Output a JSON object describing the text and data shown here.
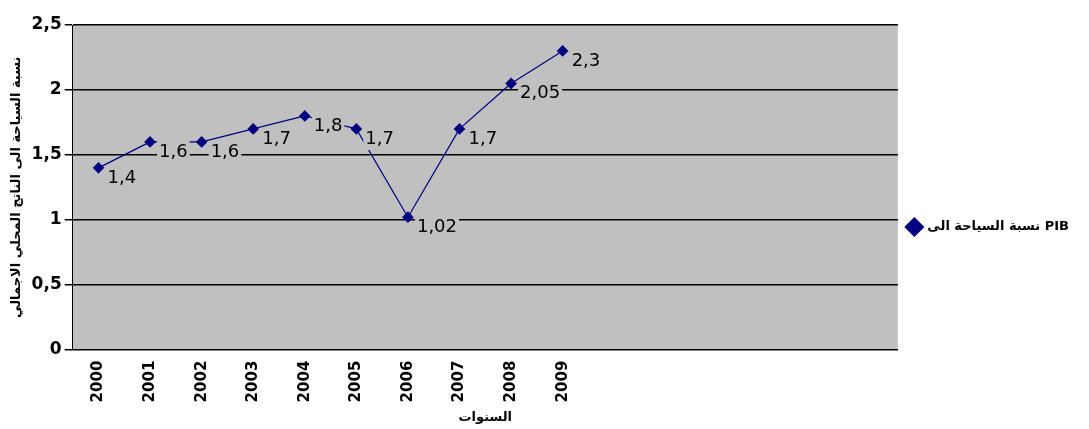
{
  "chart_data": {
    "type": "line",
    "xlabel": "السنوات",
    "ylabel": "نسبة السياحة الى الناتج المحلي الاجمالي",
    "categories": [
      "2000",
      "2001",
      "2002",
      "2003",
      "2004",
      "2005",
      "2006",
      "2007",
      "2008",
      "2009",
      null,
      null,
      null,
      null,
      null,
      null
    ],
    "series": [
      {
        "name": "نسبة السياحة الى PIB",
        "color": "#000080",
        "values": [
          1.4,
          1.6,
          1.6,
          1.7,
          1.8,
          1.7,
          1.02,
          1.7,
          2.05,
          2.3,
          null,
          null,
          null,
          null,
          null,
          null
        ],
        "value_labels": [
          "1,4",
          "1,6",
          "1,6",
          "1,7",
          "1,8",
          "1,7",
          "1,02",
          "1,7",
          "2,05",
          "2,3",
          null,
          null,
          null,
          null,
          null,
          null
        ]
      }
    ],
    "ylim": [
      0,
      2.5
    ],
    "yticks": [
      {
        "value": 0,
        "label": "0"
      },
      {
        "value": 0.5,
        "label": "0,5"
      },
      {
        "value": 1,
        "label": "1"
      },
      {
        "value": 1.5,
        "label": "1,5"
      },
      {
        "value": 2,
        "label": "2"
      },
      {
        "value": 2.5,
        "label": "2,5"
      }
    ],
    "grid": "y",
    "legend": "right",
    "marker": "diamond",
    "line_style": "solid"
  }
}
